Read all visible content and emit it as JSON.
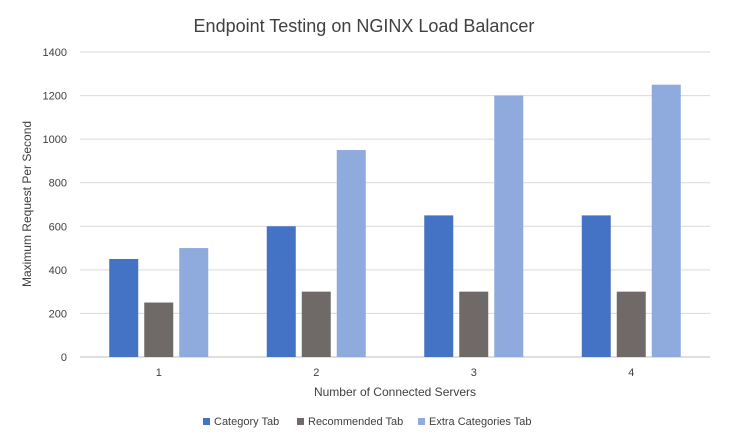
{
  "chart_data": {
    "type": "bar",
    "title": "Endpoint Testing on NGINX Load Balancer",
    "xlabel": "Number of Connected Servers",
    "ylabel": "Maximum Request Per Second",
    "categories": [
      "1",
      "2",
      "3",
      "4"
    ],
    "ylim": [
      0,
      1400
    ],
    "yticks": [
      0,
      200,
      400,
      600,
      800,
      1000,
      1200,
      1400
    ],
    "grid": true,
    "legend_position": "bottom",
    "series": [
      {
        "name": "Category Tab",
        "color": "#4472c4",
        "values": [
          450,
          600,
          650,
          650
        ]
      },
      {
        "name": "Recommended Tab",
        "color": "#6f6a67",
        "values": [
          250,
          300,
          300,
          300
        ]
      },
      {
        "name": "Extra Categories Tab",
        "color": "#8faadc",
        "values": [
          500,
          950,
          1200,
          1250
        ]
      }
    ]
  }
}
